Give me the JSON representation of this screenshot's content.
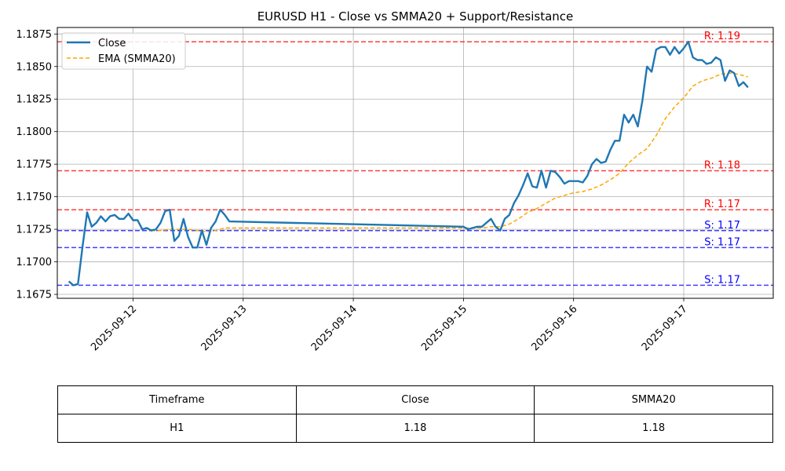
{
  "chart_data": {
    "type": "line",
    "title": "EURUSD H1 - Close vs SMMA20 + Support/Resistance",
    "xlabel": "",
    "ylabel": "",
    "ylim": [
      1.1672,
      1.188
    ],
    "xlim": [
      "2025-09-11 07:30",
      "2025-09-17 19:30"
    ],
    "grid": true,
    "legend_placement": "top-left",
    "x_ticks": [
      "2025-09-12",
      "2025-09-13",
      "2025-09-14",
      "2025-09-15",
      "2025-09-16",
      "2025-09-17"
    ],
    "y_ticks": [
      "1.1675",
      "1.1700",
      "1.1725",
      "1.1750",
      "1.1775",
      "1.1800",
      "1.1825",
      "1.1850",
      "1.1875"
    ],
    "series": [
      {
        "name": "Close",
        "color": "#1f77b4",
        "style": "solid",
        "points": [
          [
            "2025-09-11 10:00",
            1.1685
          ],
          [
            "2025-09-11 11:00",
            1.1682
          ],
          [
            "2025-09-11 12:00",
            1.1683
          ],
          [
            "2025-09-11 13:00",
            1.1712
          ],
          [
            "2025-09-11 14:00",
            1.1738
          ],
          [
            "2025-09-11 15:00",
            1.1727
          ],
          [
            "2025-09-11 16:00",
            1.173
          ],
          [
            "2025-09-11 17:00",
            1.1735
          ],
          [
            "2025-09-11 18:00",
            1.1731
          ],
          [
            "2025-09-11 19:00",
            1.1735
          ],
          [
            "2025-09-11 20:00",
            1.1736
          ],
          [
            "2025-09-11 21:00",
            1.1733
          ],
          [
            "2025-09-11 22:00",
            1.1733
          ],
          [
            "2025-09-11 23:00",
            1.1737
          ],
          [
            "2025-09-12 00:00",
            1.1732
          ],
          [
            "2025-09-12 01:00",
            1.1732
          ],
          [
            "2025-09-12 02:00",
            1.1725
          ],
          [
            "2025-09-12 03:00",
            1.1726
          ],
          [
            "2025-09-12 04:00",
            1.1724
          ],
          [
            "2025-09-12 05:00",
            1.1725
          ],
          [
            "2025-09-12 06:00",
            1.173
          ],
          [
            "2025-09-12 07:00",
            1.1739
          ],
          [
            "2025-09-12 08:00",
            1.174
          ],
          [
            "2025-09-12 09:00",
            1.1716
          ],
          [
            "2025-09-12 10:00",
            1.172
          ],
          [
            "2025-09-12 11:00",
            1.1733
          ],
          [
            "2025-09-12 12:00",
            1.1719
          ],
          [
            "2025-09-12 13:00",
            1.1711
          ],
          [
            "2025-09-12 14:00",
            1.1711
          ],
          [
            "2025-09-12 15:00",
            1.1724
          ],
          [
            "2025-09-12 16:00",
            1.1713
          ],
          [
            "2025-09-12 17:00",
            1.1726
          ],
          [
            "2025-09-12 18:00",
            1.1731
          ],
          [
            "2025-09-12 19:00",
            1.174
          ],
          [
            "2025-09-12 20:00",
            1.1736
          ],
          [
            "2025-09-12 21:00",
            1.1731
          ],
          [
            "2025-09-15 00:00",
            1.1727
          ],
          [
            "2025-09-15 01:00",
            1.1725
          ],
          [
            "2025-09-15 02:00",
            1.1726
          ],
          [
            "2025-09-15 03:00",
            1.1727
          ],
          [
            "2025-09-15 04:00",
            1.1727
          ],
          [
            "2025-09-15 05:00",
            1.173
          ],
          [
            "2025-09-15 06:00",
            1.1733
          ],
          [
            "2025-09-15 07:00",
            1.1727
          ],
          [
            "2025-09-15 08:00",
            1.1724
          ],
          [
            "2025-09-15 09:00",
            1.1733
          ],
          [
            "2025-09-15 10:00",
            1.1736
          ],
          [
            "2025-09-15 11:00",
            1.1745
          ],
          [
            "2025-09-15 12:00",
            1.1751
          ],
          [
            "2025-09-15 13:00",
            1.1759
          ],
          [
            "2025-09-15 14:00",
            1.1768
          ],
          [
            "2025-09-15 15:00",
            1.1758
          ],
          [
            "2025-09-15 16:00",
            1.1757
          ],
          [
            "2025-09-15 17:00",
            1.177
          ],
          [
            "2025-09-15 18:00",
            1.1757
          ],
          [
            "2025-09-15 19:00",
            1.177
          ],
          [
            "2025-09-15 20:00",
            1.1769
          ],
          [
            "2025-09-15 21:00",
            1.1765
          ],
          [
            "2025-09-15 22:00",
            1.176
          ],
          [
            "2025-09-15 23:00",
            1.1762
          ],
          [
            "2025-09-16 00:00",
            1.1762
          ],
          [
            "2025-09-16 01:00",
            1.1762
          ],
          [
            "2025-09-16 02:00",
            1.1761
          ],
          [
            "2025-09-16 03:00",
            1.1766
          ],
          [
            "2025-09-16 04:00",
            1.1775
          ],
          [
            "2025-09-16 05:00",
            1.1779
          ],
          [
            "2025-09-16 06:00",
            1.1776
          ],
          [
            "2025-09-16 07:00",
            1.1777
          ],
          [
            "2025-09-16 08:00",
            1.1786
          ],
          [
            "2025-09-16 09:00",
            1.1793
          ],
          [
            "2025-09-16 10:00",
            1.1793
          ],
          [
            "2025-09-16 11:00",
            1.1813
          ],
          [
            "2025-09-16 12:00",
            1.1807
          ],
          [
            "2025-09-16 13:00",
            1.1813
          ],
          [
            "2025-09-16 14:00",
            1.1804
          ],
          [
            "2025-09-16 15:00",
            1.1824
          ],
          [
            "2025-09-16 16:00",
            1.185
          ],
          [
            "2025-09-16 17:00",
            1.1846
          ],
          [
            "2025-09-16 18:00",
            1.1863
          ],
          [
            "2025-09-16 19:00",
            1.1865
          ],
          [
            "2025-09-16 20:00",
            1.1865
          ],
          [
            "2025-09-16 21:00",
            1.1859
          ],
          [
            "2025-09-16 22:00",
            1.1865
          ],
          [
            "2025-09-16 23:00",
            1.186
          ],
          [
            "2025-09-17 00:00",
            1.1864
          ],
          [
            "2025-09-17 01:00",
            1.1869
          ],
          [
            "2025-09-17 02:00",
            1.1857
          ],
          [
            "2025-09-17 03:00",
            1.1855
          ],
          [
            "2025-09-17 04:00",
            1.1855
          ],
          [
            "2025-09-17 05:00",
            1.1852
          ],
          [
            "2025-09-17 06:00",
            1.1853
          ],
          [
            "2025-09-17 07:00",
            1.1857
          ],
          [
            "2025-09-17 08:00",
            1.1855
          ],
          [
            "2025-09-17 09:00",
            1.1839
          ],
          [
            "2025-09-17 10:00",
            1.1847
          ],
          [
            "2025-09-17 11:00",
            1.1845
          ],
          [
            "2025-09-17 12:00",
            1.1835
          ],
          [
            "2025-09-17 13:00",
            1.1838
          ],
          [
            "2025-09-17 14:00",
            1.1834
          ]
        ]
      },
      {
        "name": "EMA (SMMA20)",
        "color": "#ffa500",
        "style": "dashed",
        "points": [
          [
            "2025-09-12 04:00",
            1.1724
          ],
          [
            "2025-09-12 06:00",
            1.1724
          ],
          [
            "2025-09-12 08:00",
            1.1725
          ],
          [
            "2025-09-12 10:00",
            1.1725
          ],
          [
            "2025-09-12 12:00",
            1.1725
          ],
          [
            "2025-09-12 14:00",
            1.1724
          ],
          [
            "2025-09-12 16:00",
            1.1723
          ],
          [
            "2025-09-12 18:00",
            1.1724
          ],
          [
            "2025-09-12 20:00",
            1.1726
          ],
          [
            "2025-09-12 21:00",
            1.1726
          ],
          [
            "2025-09-15 00:00",
            1.1726
          ],
          [
            "2025-09-15 02:00",
            1.1726
          ],
          [
            "2025-09-15 04:00",
            1.1726
          ],
          [
            "2025-09-15 06:00",
            1.1727
          ],
          [
            "2025-09-15 08:00",
            1.1727
          ],
          [
            "2025-09-15 10:00",
            1.1729
          ],
          [
            "2025-09-15 12:00",
            1.1733
          ],
          [
            "2025-09-15 14:00",
            1.1738
          ],
          [
            "2025-09-15 16:00",
            1.1741
          ],
          [
            "2025-09-15 18:00",
            1.1745
          ],
          [
            "2025-09-15 20:00",
            1.1749
          ],
          [
            "2025-09-15 22:00",
            1.1751
          ],
          [
            "2025-09-16 00:00",
            1.1753
          ],
          [
            "2025-09-16 02:00",
            1.1754
          ],
          [
            "2025-09-16 04:00",
            1.1756
          ],
          [
            "2025-09-16 06:00",
            1.1759
          ],
          [
            "2025-09-16 08:00",
            1.1763
          ],
          [
            "2025-09-16 10:00",
            1.1768
          ],
          [
            "2025-09-16 12:00",
            1.1776
          ],
          [
            "2025-09-16 14:00",
            1.1782
          ],
          [
            "2025-09-16 16:00",
            1.1787
          ],
          [
            "2025-09-16 18:00",
            1.1797
          ],
          [
            "2025-09-16 20:00",
            1.181
          ],
          [
            "2025-09-16 22:00",
            1.1819
          ],
          [
            "2025-09-17 00:00",
            1.1826
          ],
          [
            "2025-09-17 02:00",
            1.1835
          ],
          [
            "2025-09-17 04:00",
            1.1839
          ],
          [
            "2025-09-17 06:00",
            1.1841
          ],
          [
            "2025-09-17 08:00",
            1.1844
          ],
          [
            "2025-09-17 10:00",
            1.1845
          ],
          [
            "2025-09-17 12:00",
            1.1844
          ],
          [
            "2025-09-17 14:00",
            1.1842
          ]
        ]
      }
    ],
    "levels": [
      {
        "kind": "resistance",
        "value": 1.1869,
        "label": "R: 1.19",
        "color": "#ff0000"
      },
      {
        "kind": "resistance",
        "value": 1.177,
        "label": "R: 1.18",
        "color": "#ff0000"
      },
      {
        "kind": "resistance",
        "value": 1.174,
        "label": "R: 1.17",
        "color": "#ff0000"
      },
      {
        "kind": "support",
        "value": 1.1724,
        "label": "S: 1.17",
        "color": "#0000ff"
      },
      {
        "kind": "support",
        "value": 1.1711,
        "label": "S: 1.17",
        "color": "#0000ff"
      },
      {
        "kind": "support",
        "value": 1.1682,
        "label": "S: 1.17",
        "color": "#0000ff"
      }
    ]
  },
  "table": {
    "headers": [
      "Timeframe",
      "Close",
      "SMMA20"
    ],
    "rows": [
      [
        "H1",
        "1.18",
        "1.18"
      ]
    ]
  }
}
